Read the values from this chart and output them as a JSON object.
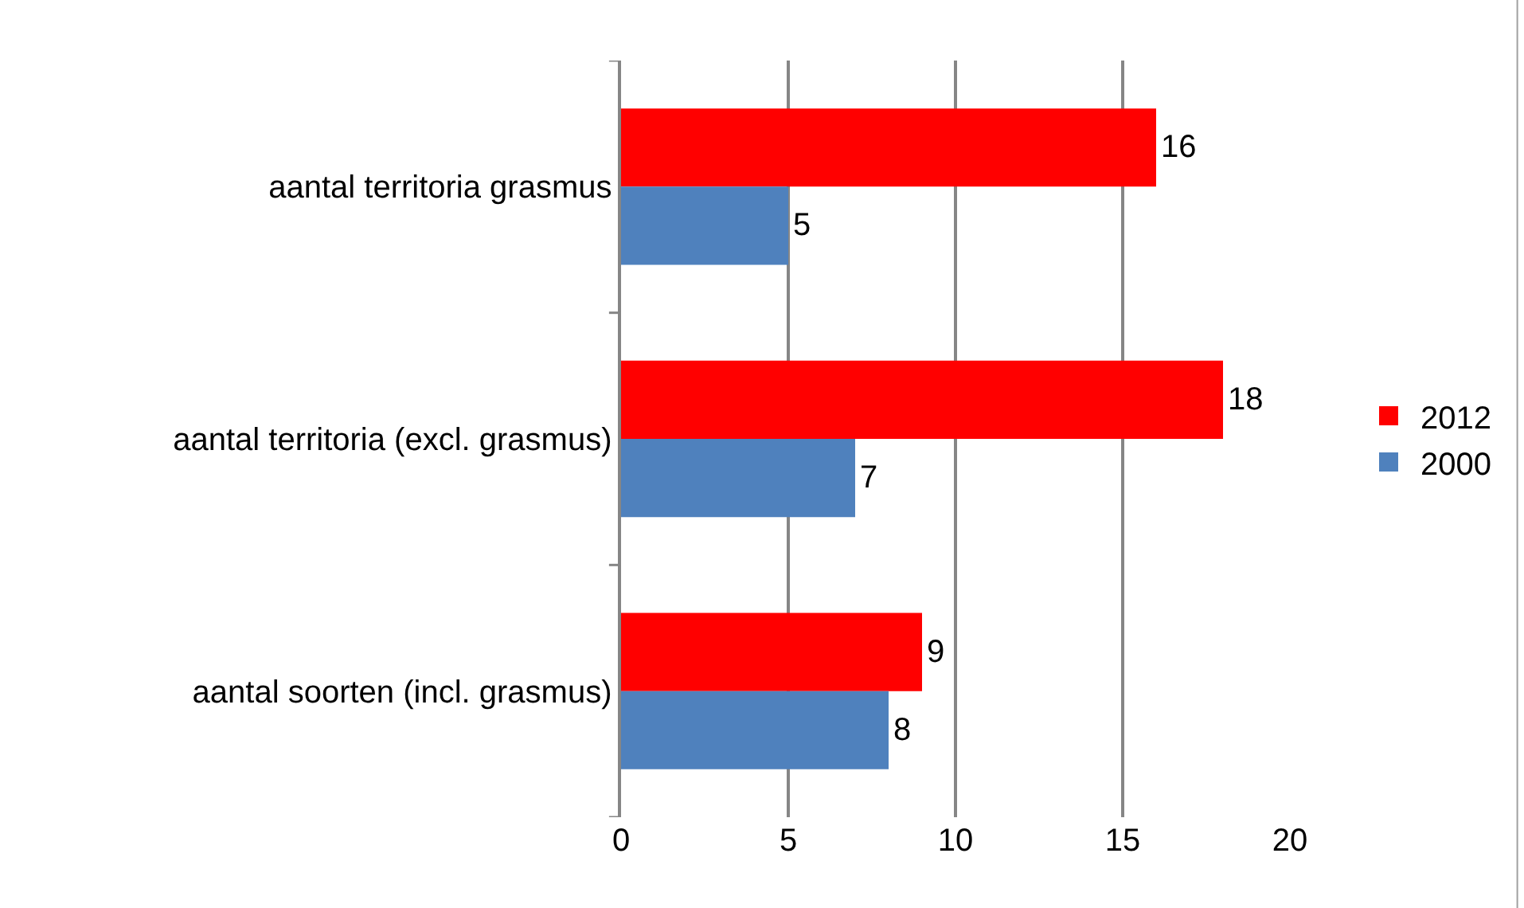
{
  "chart_data": {
    "type": "bar",
    "orientation": "horizontal",
    "categories": [
      "aantal territoria grasmus",
      "aantal territoria (excl. grasmus)",
      "aantal soorten (incl. grasmus)"
    ],
    "series": [
      {
        "name": "2012",
        "color": "#ff0000",
        "values": [
          16,
          18,
          9
        ]
      },
      {
        "name": "2000",
        "color": "#4f81bd",
        "values": [
          5,
          7,
          8
        ]
      }
    ],
    "xlim": [
      0,
      20
    ],
    "xticks": [
      0,
      5,
      10,
      15,
      20
    ],
    "grid": "x",
    "legend": "right",
    "data_labels": true
  }
}
